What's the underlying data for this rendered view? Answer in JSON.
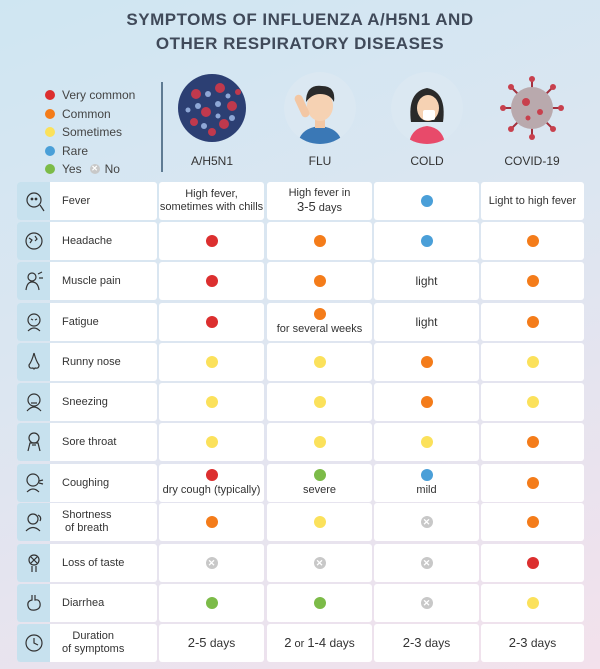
{
  "title": {
    "line1": "SYMPTOMS OF INFLUENZA A/H5N1 AND",
    "line2": "OTHER RESPIRATORY DISEASES"
  },
  "legend": {
    "very_common": "Very common",
    "common": "Common",
    "sometimes": "Sometimes",
    "rare": "Rare",
    "yes": "Yes",
    "no": "No"
  },
  "colors": {
    "very_common": "#dc2f2f",
    "common": "#f47c1a",
    "sometimes": "#fbe15b",
    "rare": "#4a9fd8",
    "yes": "#7cbb48",
    "no": "#c8c8c8"
  },
  "columns": [
    "A/H5N1",
    "FLU",
    "COLD",
    "COVID-19"
  ],
  "symptoms": {
    "fever": "Fever",
    "headache": "Headache",
    "muscle_pain": "Muscle pain",
    "fatigue": "Fatigue",
    "runny_nose": "Runny nose",
    "sneezing": "Sneezing",
    "sore_throat": "Sore throat",
    "coughing": "Coughing",
    "shortness_1": "Shortness",
    "shortness_2": "of breath",
    "loss_of_taste": "Loss of taste",
    "diarrhea": "Diarrhea",
    "duration_1": "Duration",
    "duration_2": "of symptoms"
  },
  "texts": {
    "fever_h5n1_1": "High fever,",
    "fever_h5n1_2": "sometimes with chills",
    "fever_flu_1": "High fever in",
    "fever_flu_2": "3-5",
    "fever_flu_3": " days",
    "fever_covid": "Light to high fever",
    "muscle_cold": "light",
    "fatigue_flu": "for several weeks",
    "fatigue_cold": "light",
    "cough_h5n1": "dry cough (typically)",
    "cough_flu": "severe",
    "cough_cold": "mild",
    "dur_h5n1_num": "2-5",
    "dur_h5n1_unit": " days",
    "dur_flu_a": "2",
    "dur_flu_or": " or ",
    "dur_flu_b": "1-4",
    "dur_flu_unit": " days",
    "dur_cold_num": "2-3",
    "dur_cold_unit": " days",
    "dur_covid_num": "2-3",
    "dur_covid_unit": " days"
  },
  "icons": {
    "fever": "fever-icon",
    "headache": "headache-icon",
    "muscle_pain": "muscle-pain-icon",
    "fatigue": "fatigue-icon",
    "runny_nose": "nose-icon",
    "sneezing": "sneezing-icon",
    "sore_throat": "sore-throat-icon",
    "coughing": "coughing-icon",
    "shortness": "breath-icon",
    "loss_of_taste": "taste-icon",
    "diarrhea": "stomach-icon",
    "duration": "clock-icon"
  }
}
